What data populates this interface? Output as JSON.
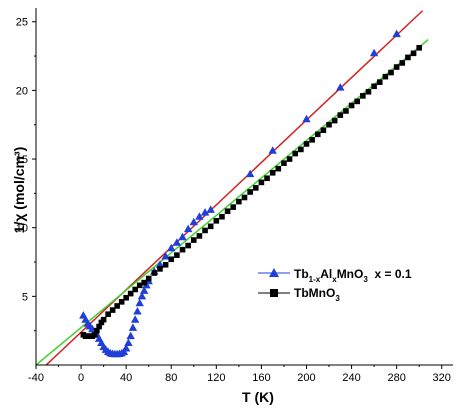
{
  "chart_data": {
    "type": "scatter",
    "xlabel": "T (K)",
    "ylabel": "1/χ (mol/cm³)",
    "xlim": [
      -40,
      330
    ],
    "ylim": [
      0,
      26
    ],
    "x_ticks": [
      -40,
      0,
      40,
      80,
      120,
      160,
      200,
      240,
      280,
      320
    ],
    "y_ticks": [
      5,
      10,
      15,
      20,
      25
    ],
    "x_tick_labels": [
      "-40",
      "0",
      "40",
      "80",
      "120",
      "160",
      "200",
      "240",
      "280",
      "320"
    ],
    "y_tick_labels": [
      "5",
      "10",
      "15",
      "20",
      "25"
    ],
    "grid": false,
    "legend": "middle-right",
    "series": [
      {
        "name": "Tb1-xAlxMnO3  x = 0.1",
        "legend_parts": {
          "a": "Tb",
          "b": "1-x",
          "c": "Al",
          "d": "x",
          "e": "MnO",
          "f": "3",
          "g": "  x = 0.1"
        },
        "marker": "triangle",
        "color": "#1f3fd8",
        "x": [
          2,
          4,
          6,
          8,
          10,
          12,
          14,
          16,
          18,
          20,
          22,
          24,
          26,
          28,
          30,
          32,
          34,
          36,
          38,
          40,
          42,
          44,
          46,
          48,
          50,
          52,
          54,
          56,
          58,
          60,
          65,
          70,
          75,
          80,
          85,
          90,
          95,
          100,
          105,
          110,
          115,
          150,
          170,
          200,
          230,
          260,
          280
        ],
        "y": [
          3.6,
          3.3,
          3.0,
          2.8,
          2.6,
          2.4,
          2.2,
          1.9,
          1.6,
          1.3,
          1.1,
          0.95,
          0.85,
          0.8,
          0.78,
          0.78,
          0.8,
          0.85,
          0.95,
          1.2,
          1.6,
          2.1,
          2.7,
          3.3,
          3.9,
          4.5,
          5.0,
          5.4,
          5.8,
          6.1,
          6.8,
          7.3,
          7.9,
          8.5,
          8.9,
          9.3,
          9.9,
          10.4,
          10.8,
          11.1,
          11.3,
          13.9,
          15.6,
          17.9,
          20.2,
          22.7,
          24.1
        ]
      },
      {
        "name": "TbMnO3",
        "legend_parts": {
          "a": "TbMnO",
          "b": "3"
        },
        "marker": "square",
        "color": "#000000",
        "x": [
          2,
          4,
          6,
          8,
          10,
          12,
          14,
          16,
          18,
          20,
          24,
          28,
          32,
          36,
          40,
          44,
          48,
          52,
          56,
          60,
          65,
          70,
          75,
          80,
          85,
          90,
          95,
          100,
          105,
          110,
          115,
          120,
          125,
          130,
          135,
          140,
          145,
          150,
          155,
          160,
          165,
          170,
          175,
          180,
          185,
          190,
          195,
          200,
          205,
          210,
          215,
          220,
          225,
          230,
          235,
          240,
          245,
          250,
          255,
          260,
          265,
          270,
          275,
          280,
          285,
          290,
          295,
          300
        ],
        "y": [
          2.2,
          2.1,
          2.1,
          2.1,
          2.1,
          2.2,
          2.5,
          2.8,
          3.1,
          3.3,
          3.7,
          4.0,
          4.3,
          4.6,
          4.9,
          5.2,
          5.5,
          5.8,
          6.0,
          6.3,
          6.7,
          7.0,
          7.3,
          7.7,
          8.0,
          8.4,
          8.7,
          9.1,
          9.4,
          9.8,
          10.1,
          10.5,
          10.8,
          11.2,
          11.5,
          11.9,
          12.2,
          12.6,
          12.9,
          13.3,
          13.6,
          14.0,
          14.3,
          14.7,
          15.0,
          15.4,
          15.7,
          16.1,
          16.4,
          16.8,
          17.1,
          17.5,
          17.8,
          18.2,
          18.5,
          18.9,
          19.2,
          19.6,
          19.9,
          20.3,
          20.6,
          21.0,
          21.3,
          21.7,
          22.0,
          22.4,
          22.7,
          23.1
        ]
      }
    ],
    "fit_lines": [
      {
        "color": "#d42020",
        "x": [
          -40,
          303
        ],
        "y": [
          -0.7,
          25.8
        ]
      },
      {
        "color": "#3fcf2f",
        "x": [
          -40,
          308
        ],
        "y": [
          0.0,
          23.7
        ]
      }
    ]
  }
}
